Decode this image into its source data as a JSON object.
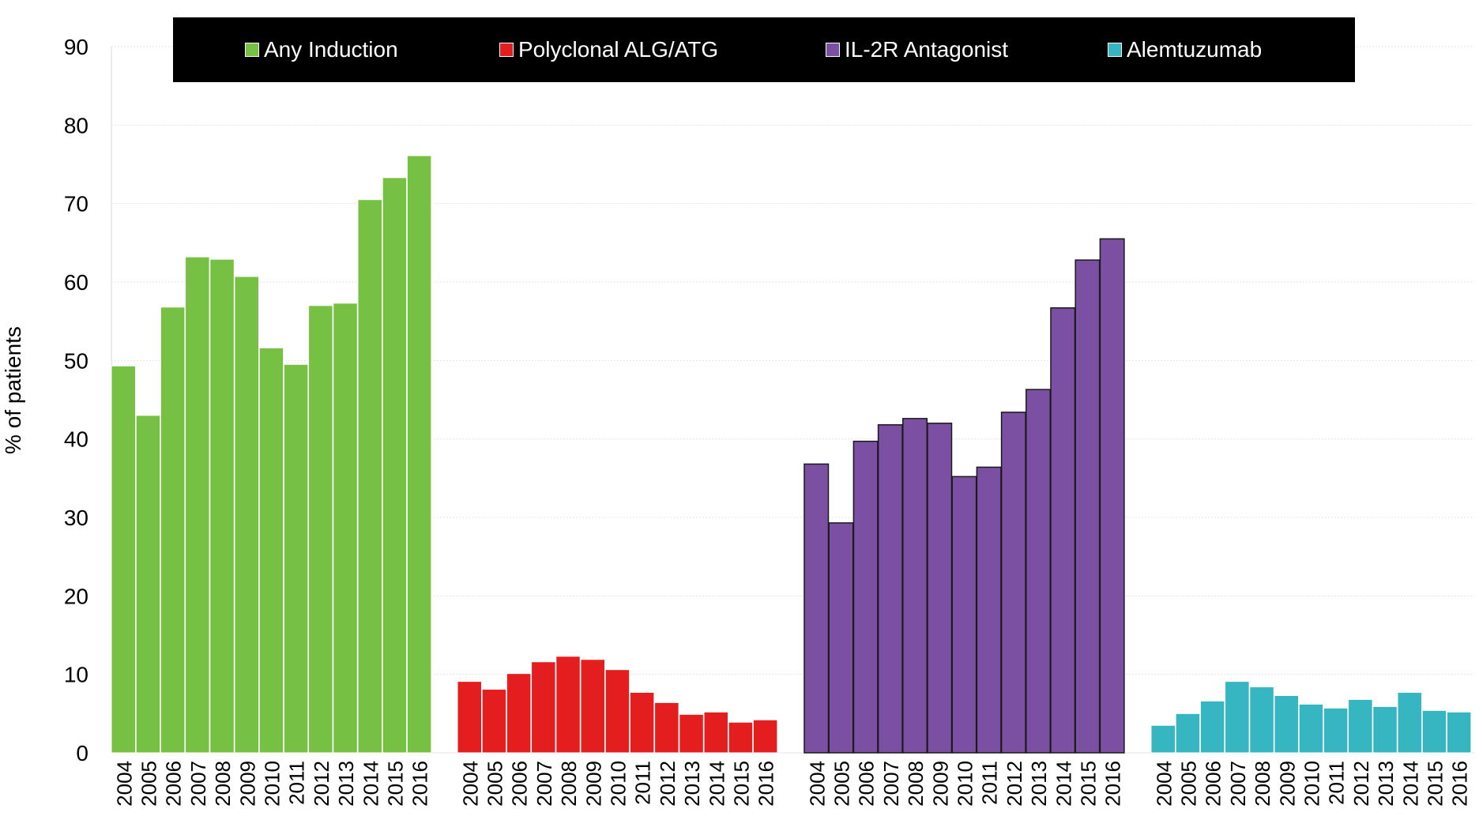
{
  "chart_data": {
    "type": "bar",
    "ylabel": "% of patients",
    "ylim": [
      0,
      90
    ],
    "yticks": [
      0,
      10,
      20,
      30,
      40,
      50,
      60,
      70,
      80,
      90
    ],
    "grid": true,
    "legend_position": "top",
    "categories": [
      "2004",
      "2005",
      "2006",
      "2007",
      "2008",
      "2009",
      "2010",
      "2011",
      "2012",
      "2013",
      "2014",
      "2015",
      "2016"
    ],
    "series": [
      {
        "name": "Any Induction",
        "color": "#76c043",
        "values": [
          49.3,
          43.0,
          56.8,
          63.2,
          62.9,
          60.7,
          51.6,
          49.5,
          57.0,
          57.3,
          70.5,
          73.3,
          76.1
        ]
      },
      {
        "name": "Polyclonal ALG/ATG",
        "color": "#e41e1e",
        "values": [
          9.1,
          8.1,
          10.1,
          11.6,
          12.3,
          11.9,
          10.6,
          7.7,
          6.4,
          4.9,
          5.2,
          3.9,
          4.2
        ]
      },
      {
        "name": "IL-2R Antagonist",
        "color": "#7b4fa2",
        "values": [
          36.8,
          29.3,
          39.7,
          41.8,
          42.6,
          42.0,
          35.2,
          36.4,
          43.4,
          46.3,
          56.7,
          62.8,
          65.5
        ]
      },
      {
        "name": "Alemtuzumab",
        "color": "#35b6c1",
        "values": [
          3.5,
          5.0,
          6.6,
          9.1,
          8.4,
          7.3,
          6.2,
          5.7,
          6.8,
          5.9,
          7.7,
          5.4,
          5.2
        ]
      }
    ]
  }
}
